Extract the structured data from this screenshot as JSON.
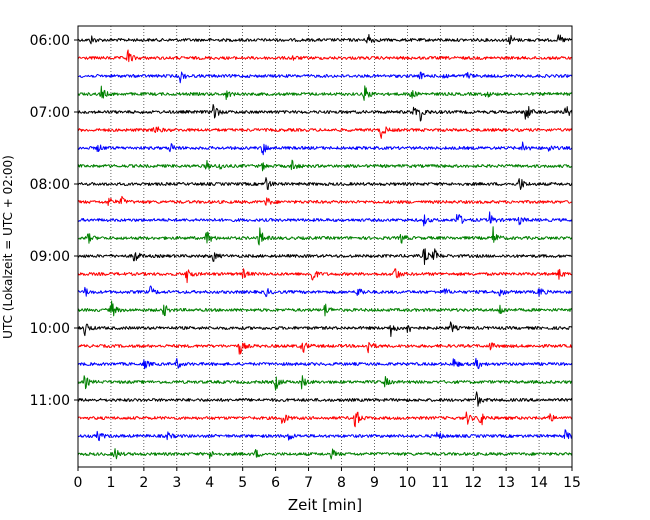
{
  "chart_data": {
    "type": "line",
    "title": "",
    "xlabel": "Zeit  [min]",
    "ylabel": "UTC (Lokalzeit = UTC + 02:00)",
    "xlim": [
      0,
      15
    ],
    "x_ticks": [
      "0",
      "1",
      "2",
      "3",
      "4",
      "5",
      "6",
      "7",
      "8",
      "9",
      "10",
      "11",
      "12",
      "13",
      "14",
      "15"
    ],
    "y_ticks": [
      "06:00",
      "07:00",
      "08:00",
      "09:00",
      "10:00",
      "11:00"
    ],
    "grid": "vertical dotted at each minute",
    "trace_minutes": 15,
    "trace_color_cycle": [
      "#000000",
      "#ff0000",
      "#0000ff",
      "#008000"
    ],
    "series": [
      {
        "start": "06:00",
        "events": [
          [
            0.4,
            0.5
          ],
          [
            8.8,
            1.0
          ],
          [
            13.1,
            0.7
          ],
          [
            14.6,
            0.7
          ]
        ]
      },
      {
        "start": "06:15",
        "events": [
          [
            1.5,
            1.1
          ],
          [
            6.5,
            0.3
          ]
        ]
      },
      {
        "start": "06:30",
        "events": [
          [
            3.1,
            0.7
          ],
          [
            10.4,
            0.4
          ],
          [
            11.1,
            0.4
          ],
          [
            11.8,
            0.5
          ]
        ]
      },
      {
        "start": "06:45",
        "events": [
          [
            0.7,
            0.9
          ],
          [
            4.5,
            0.5
          ],
          [
            8.7,
            1.2
          ],
          [
            10.1,
            0.6
          ],
          [
            12.4,
            0.4
          ]
        ]
      },
      {
        "start": "07:00",
        "events": [
          [
            4.1,
            1.4
          ],
          [
            10.2,
            0.8
          ],
          [
            10.4,
            0.9
          ],
          [
            13.6,
            1.4
          ],
          [
            14.8,
            0.9
          ]
        ]
      },
      {
        "start": "07:15",
        "events": [
          [
            2.3,
            1.0
          ],
          [
            9.2,
            1.1
          ]
        ]
      },
      {
        "start": "07:30",
        "events": [
          [
            0.6,
            0.5
          ],
          [
            2.8,
            0.6
          ],
          [
            5.6,
            0.9
          ],
          [
            13.5,
            0.7
          ],
          [
            14.3,
            0.4
          ]
        ]
      },
      {
        "start": "07:45",
        "events": [
          [
            3.9,
            0.6
          ],
          [
            4.3,
            0.5
          ],
          [
            5.6,
            0.4
          ],
          [
            6.5,
            0.8
          ]
        ]
      },
      {
        "start": "08:00",
        "events": [
          [
            5.7,
            1.1
          ],
          [
            13.4,
            1.0
          ]
        ]
      },
      {
        "start": "08:15",
        "events": [
          [
            0.9,
            0.8
          ],
          [
            1.3,
            0.7
          ],
          [
            5.7,
            0.7
          ]
        ]
      },
      {
        "start": "08:30",
        "events": [
          [
            10.5,
            0.6
          ],
          [
            11.5,
            1.4
          ],
          [
            12.5,
            0.8
          ],
          [
            13.4,
            0.5
          ]
        ]
      },
      {
        "start": "08:45",
        "events": [
          [
            0.3,
            0.6
          ],
          [
            3.9,
            1.1
          ],
          [
            5.5,
            1.3
          ],
          [
            9.8,
            0.7
          ],
          [
            12.6,
            1.2
          ]
        ]
      },
      {
        "start": "09:00",
        "events": [
          [
            1.7,
            1.0
          ],
          [
            4.1,
            0.6
          ],
          [
            10.5,
            1.1
          ],
          [
            10.8,
            0.9
          ]
        ]
      },
      {
        "start": "09:15",
        "events": [
          [
            3.3,
            1.1
          ],
          [
            5.0,
            0.6
          ],
          [
            7.1,
            1.1
          ],
          [
            9.6,
            1.2
          ],
          [
            14.6,
            0.6
          ]
        ]
      },
      {
        "start": "09:30",
        "events": [
          [
            0.2,
            0.6
          ],
          [
            2.2,
            0.6
          ],
          [
            5.7,
            0.5
          ],
          [
            8.5,
            0.8
          ],
          [
            11.1,
            0.6
          ],
          [
            12.8,
            0.6
          ],
          [
            14.0,
            0.7
          ]
        ]
      },
      {
        "start": "09:45",
        "events": [
          [
            1.0,
            1.3
          ],
          [
            2.6,
            0.8
          ],
          [
            7.5,
            0.8
          ],
          [
            12.8,
            0.7
          ]
        ]
      },
      {
        "start": "10:00",
        "events": [
          [
            0.2,
            1.0
          ],
          [
            9.5,
            0.9
          ],
          [
            10.0,
            0.7
          ],
          [
            11.3,
            0.7
          ]
        ]
      },
      {
        "start": "10:15",
        "events": [
          [
            4.9,
            1.1
          ],
          [
            6.8,
            1.0
          ],
          [
            8.8,
            1.0
          ],
          [
            12.5,
            0.5
          ]
        ]
      },
      {
        "start": "10:30",
        "events": [
          [
            2.0,
            0.6
          ],
          [
            3.0,
            0.6
          ],
          [
            11.4,
            0.7
          ],
          [
            12.1,
            0.8
          ]
        ]
      },
      {
        "start": "10:45",
        "events": [
          [
            0.2,
            0.8
          ],
          [
            6.0,
            0.9
          ],
          [
            6.8,
            0.8
          ],
          [
            9.3,
            0.7
          ]
        ]
      },
      {
        "start": "11:00",
        "events": [
          [
            12.1,
            0.9
          ]
        ]
      },
      {
        "start": "11:15",
        "events": [
          [
            6.2,
            0.9
          ],
          [
            8.4,
            1.6
          ],
          [
            11.8,
            0.8
          ],
          [
            12.2,
            1.3
          ],
          [
            14.3,
            0.6
          ]
        ]
      },
      {
        "start": "11:30",
        "events": [
          [
            0.6,
            0.7
          ],
          [
            2.7,
            0.5
          ],
          [
            6.4,
            0.5
          ],
          [
            10.9,
            0.6
          ],
          [
            14.8,
            0.7
          ]
        ]
      },
      {
        "start": "11:45",
        "events": [
          [
            1.1,
            0.9
          ],
          [
            4.0,
            0.4
          ],
          [
            5.4,
            0.5
          ],
          [
            7.7,
            0.6
          ]
        ]
      }
    ]
  }
}
